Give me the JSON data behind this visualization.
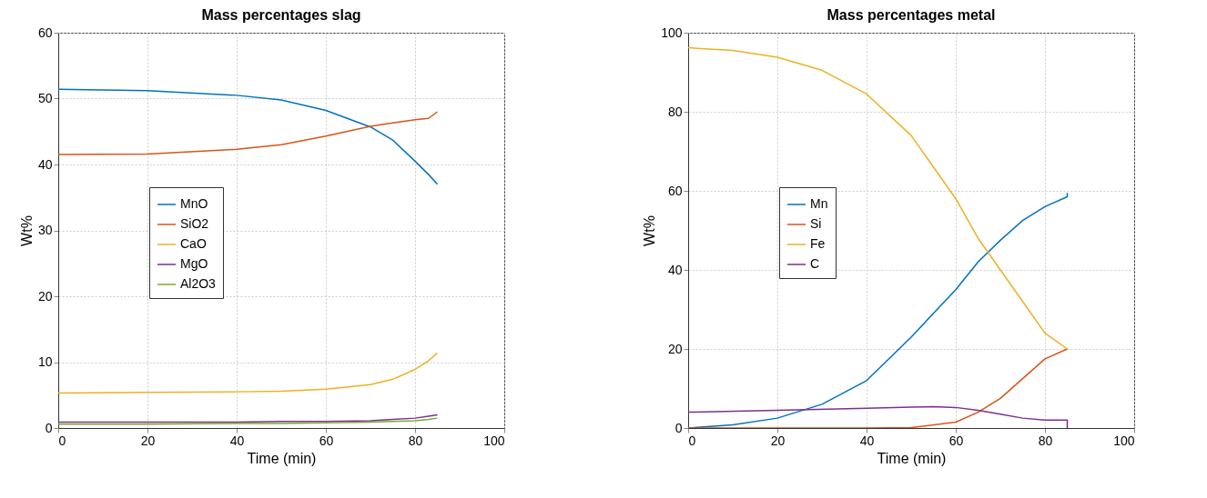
{
  "chart_data": [
    {
      "type": "line",
      "title": "Mass percentages slag",
      "xlabel": "Time (min)",
      "ylabel": "Wt%",
      "xlim": [
        0,
        100
      ],
      "xticks": [
        0,
        20,
        40,
        60,
        80,
        100
      ],
      "ylim": [
        0,
        60
      ],
      "yticks": [
        0,
        10,
        20,
        30,
        40,
        50,
        60
      ],
      "grid": true,
      "legend": "left",
      "x": [
        0,
        20,
        40,
        50,
        60,
        70,
        75,
        80,
        83,
        85
      ],
      "series": [
        {
          "name": "MnO",
          "color": "#0072bd",
          "values": [
            51.4,
            51.2,
            50.5,
            49.8,
            48.2,
            45.7,
            43.7,
            40.5,
            38.5,
            37
          ]
        },
        {
          "name": "SiO2",
          "color": "#d95319",
          "values": [
            41.5,
            41.6,
            42.3,
            43,
            44.3,
            45.8,
            46.3,
            46.8,
            47,
            48
          ]
        },
        {
          "name": "CaO",
          "color": "#edb120",
          "values": [
            5.3,
            5.4,
            5.5,
            5.6,
            5.9,
            6.6,
            7.4,
            8.9,
            10.2,
            11.4
          ]
        },
        {
          "name": "MgO",
          "color": "#7e2f8e",
          "values": [
            0.9,
            0.9,
            0.9,
            1,
            1,
            1.1,
            1.3,
            1.5,
            1.8,
            2
          ]
        },
        {
          "name": "Al2O3",
          "color": "#77ac30",
          "values": [
            0.6,
            0.6,
            0.7,
            0.7,
            0.8,
            0.9,
            1,
            1.1,
            1.3,
            1.5
          ]
        }
      ]
    },
    {
      "type": "line",
      "title": "Mass percentages metal",
      "xlabel": "Time (min)",
      "ylabel": "Wt%",
      "xlim": [
        0,
        100
      ],
      "xticks": [
        0,
        20,
        40,
        60,
        80,
        100
      ],
      "ylim": [
        0,
        100
      ],
      "yticks": [
        0,
        20,
        40,
        60,
        80,
        100
      ],
      "grid": true,
      "legend": "left",
      "series": [
        {
          "name": "Mn",
          "color": "#0072bd",
          "x": [
            0,
            10,
            20,
            30,
            40,
            50,
            60,
            65,
            70,
            75,
            80,
            85,
            85
          ],
          "values": [
            0,
            0.8,
            2.5,
            6,
            12,
            23,
            35,
            42,
            47.5,
            52.5,
            56,
            58.5,
            59.5
          ]
        },
        {
          "name": "Si",
          "color": "#d95319",
          "x": [
            0,
            20,
            40,
            50,
            60,
            65,
            70,
            75,
            80,
            85
          ],
          "values": [
            0,
            0,
            0,
            0.1,
            1.5,
            4,
            7.5,
            12.5,
            17.5,
            20
          ]
        },
        {
          "name": "Fe",
          "color": "#edb120",
          "x": [
            0,
            10,
            20,
            30,
            40,
            50,
            60,
            65,
            70,
            75,
            80,
            85
          ],
          "values": [
            96.2,
            95.5,
            93.8,
            90.5,
            84.5,
            74,
            58,
            48,
            40,
            32,
            24,
            20
          ]
        },
        {
          "name": "C",
          "color": "#7e2f8e",
          "x": [
            0,
            20,
            40,
            50,
            55,
            60,
            65,
            70,
            75,
            80,
            85,
            85
          ],
          "values": [
            4,
            4.5,
            5,
            5.3,
            5.4,
            5.2,
            4.5,
            3.5,
            2.5,
            2,
            2,
            0
          ]
        }
      ]
    }
  ]
}
